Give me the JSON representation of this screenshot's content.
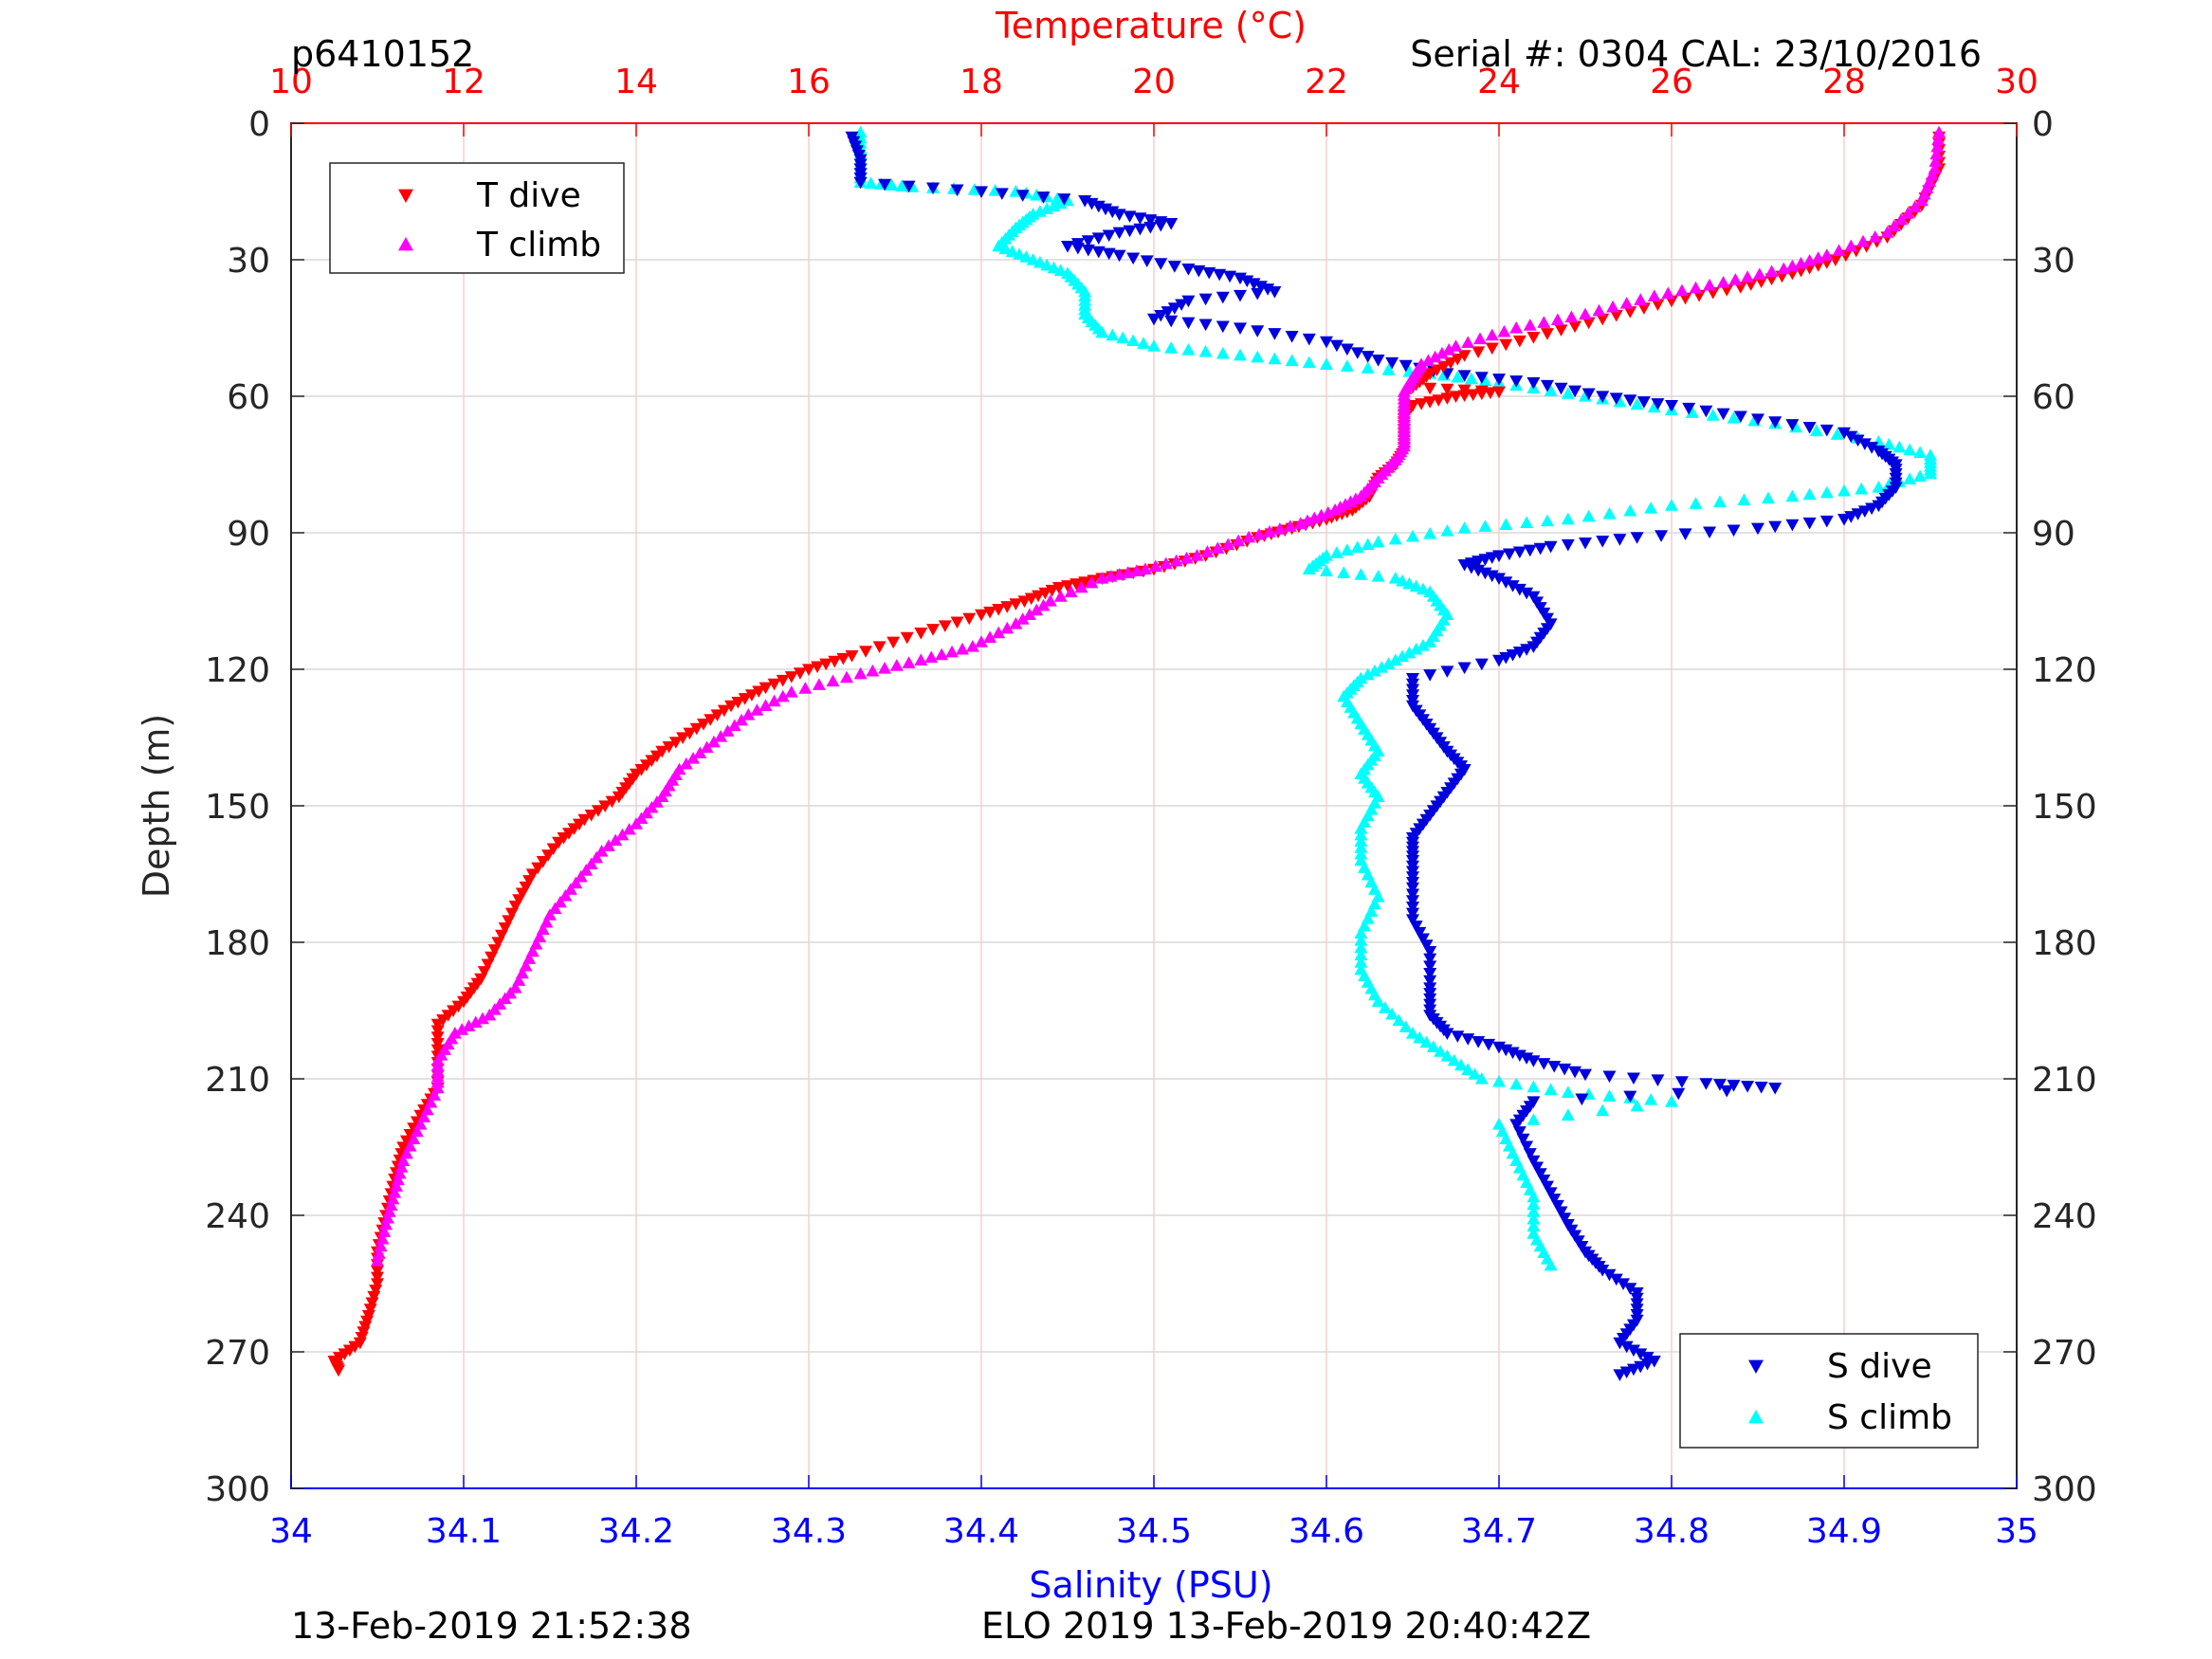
{
  "header": {
    "glider_id": "p6410152",
    "serial_cal": "Serial #: 0304  CAL: 23/10/2016"
  },
  "footer": {
    "left_timestamp": "13-Feb-2019 21:52:38",
    "center_text": "ELO 2019 13-Feb-2019 20:40:42Z"
  },
  "colors": {
    "t_dive": "#ff0000",
    "t_climb": "#ff00ff",
    "s_dive": "#0000dd",
    "s_climb": "#00ffff",
    "temperature_axis": "#ff0000",
    "salinity_axis": "#0000ff",
    "axis": "#262626"
  },
  "chart_data": {
    "type": "scatter",
    "ylabel": "Depth (m)",
    "ylim": [
      0,
      300
    ],
    "y_reversed": true,
    "y_ticks": [
      "0",
      "30",
      "60",
      "90",
      "120",
      "150",
      "180",
      "210",
      "240",
      "270",
      "300"
    ],
    "temperature_axis": {
      "label": "Temperature (°C)",
      "position": "top",
      "lim": [
        10,
        30
      ],
      "ticks": [
        "10",
        "12",
        "14",
        "16",
        "18",
        "20",
        "22",
        "24",
        "26",
        "28",
        "30"
      ]
    },
    "salinity_axis": {
      "label": "Salinity (PSU)",
      "position": "bottom",
      "lim": [
        34,
        35
      ],
      "ticks": [
        "34",
        "34.1",
        "34.2",
        "34.3",
        "34.4",
        "34.5",
        "34.6",
        "34.7",
        "34.8",
        "34.9",
        "35"
      ]
    },
    "grid": true,
    "legends": [
      {
        "placement": "top-left",
        "entries": [
          "T dive",
          "T climb"
        ]
      },
      {
        "placement": "bottom-right",
        "entries": [
          "S dive",
          "S climb"
        ]
      }
    ],
    "series": [
      {
        "name": "T dive",
        "axis": "temperature",
        "marker": "triangle-down",
        "points": [
          [
            29.1,
            3
          ],
          [
            29.1,
            10
          ],
          [
            28.9,
            18
          ],
          [
            28.5,
            25
          ],
          [
            27.9,
            30
          ],
          [
            27.4,
            33
          ],
          [
            26.8,
            36
          ],
          [
            26.0,
            39
          ],
          [
            25.2,
            43
          ],
          [
            24.4,
            47
          ],
          [
            23.6,
            51
          ],
          [
            23.2,
            55
          ],
          [
            23.0,
            58
          ],
          [
            24.0,
            59
          ],
          [
            23.5,
            60
          ],
          [
            23.0,
            62
          ],
          [
            22.9,
            64
          ],
          [
            22.9,
            68
          ],
          [
            22.9,
            72
          ],
          [
            22.8,
            75
          ],
          [
            22.6,
            78
          ],
          [
            22.5,
            82
          ],
          [
            22.3,
            85
          ],
          [
            22.0,
            87
          ],
          [
            21.6,
            89
          ],
          [
            21.2,
            91
          ],
          [
            20.6,
            95
          ],
          [
            20.0,
            98
          ],
          [
            19.4,
            100
          ],
          [
            18.9,
            102
          ],
          [
            18.5,
            105
          ],
          [
            18.0,
            108
          ],
          [
            17.3,
            112
          ],
          [
            16.5,
            117
          ],
          [
            16.0,
            120
          ],
          [
            15.5,
            124
          ],
          [
            15.1,
            128
          ],
          [
            14.7,
            133
          ],
          [
            14.3,
            138
          ],
          [
            14.0,
            143
          ],
          [
            13.8,
            148
          ],
          [
            13.4,
            153
          ],
          [
            13.1,
            158
          ],
          [
            12.8,
            165
          ],
          [
            12.6,
            172
          ],
          [
            12.4,
            180
          ],
          [
            12.2,
            188
          ],
          [
            12.0,
            193
          ],
          [
            11.7,
            198
          ],
          [
            11.7,
            205
          ],
          [
            11.7,
            212
          ],
          [
            11.5,
            218
          ],
          [
            11.3,
            225
          ],
          [
            11.2,
            232
          ],
          [
            11.1,
            240
          ],
          [
            11.0,
            248
          ],
          [
            11.0,
            255
          ],
          [
            10.9,
            262
          ],
          [
            10.8,
            268
          ],
          [
            10.5,
            272
          ],
          [
            10.55,
            274
          ]
        ]
      },
      {
        "name": "T climb",
        "axis": "temperature",
        "marker": "triangle-up",
        "points": [
          [
            29.1,
            2
          ],
          [
            29.05,
            10
          ],
          [
            28.9,
            17
          ],
          [
            28.5,
            24
          ],
          [
            27.8,
            29
          ],
          [
            27.3,
            32
          ],
          [
            26.6,
            35
          ],
          [
            25.8,
            38
          ],
          [
            25.0,
            42
          ],
          [
            24.2,
            45
          ],
          [
            23.5,
            49
          ],
          [
            23.1,
            53
          ],
          [
            23.0,
            56
          ],
          [
            22.9,
            59
          ],
          [
            22.9,
            63
          ],
          [
            22.9,
            67
          ],
          [
            22.9,
            71
          ],
          [
            22.8,
            74
          ],
          [
            22.6,
            78
          ],
          [
            22.4,
            82
          ],
          [
            22.1,
            85
          ],
          [
            21.7,
            88
          ],
          [
            21.1,
            91
          ],
          [
            20.5,
            95
          ],
          [
            19.9,
            98
          ],
          [
            19.4,
            100
          ],
          [
            18.8,
            105
          ],
          [
            18.4,
            110
          ],
          [
            17.9,
            115
          ],
          [
            17.3,
            118
          ],
          [
            16.6,
            121
          ],
          [
            15.8,
            125
          ],
          [
            15.3,
            130
          ],
          [
            14.9,
            136
          ],
          [
            14.5,
            142
          ],
          [
            14.3,
            148
          ],
          [
            14.0,
            154
          ],
          [
            13.6,
            160
          ],
          [
            13.3,
            167
          ],
          [
            13.0,
            174
          ],
          [
            12.8,
            182
          ],
          [
            12.6,
            190
          ],
          [
            12.3,
            196
          ],
          [
            11.9,
            200
          ],
          [
            11.7,
            206
          ],
          [
            11.7,
            212
          ],
          [
            11.5,
            220
          ],
          [
            11.3,
            228
          ],
          [
            11.2,
            235
          ],
          [
            11.1,
            242
          ],
          [
            11.0,
            250
          ]
        ]
      },
      {
        "name": "S dive",
        "axis": "salinity",
        "marker": "triangle-down",
        "points": [
          [
            34.325,
            3
          ],
          [
            34.33,
            8
          ],
          [
            34.33,
            13
          ],
          [
            34.4,
            15
          ],
          [
            34.46,
            17
          ],
          [
            34.48,
            20
          ],
          [
            34.51,
            22
          ],
          [
            34.48,
            24
          ],
          [
            34.45,
            27
          ],
          [
            34.48,
            29
          ],
          [
            34.52,
            32
          ],
          [
            34.55,
            34
          ],
          [
            34.57,
            37
          ],
          [
            34.52,
            39
          ],
          [
            34.5,
            43
          ],
          [
            34.55,
            45
          ],
          [
            34.6,
            48
          ],
          [
            34.63,
            52
          ],
          [
            34.67,
            55
          ],
          [
            34.72,
            57
          ],
          [
            34.76,
            60
          ],
          [
            34.8,
            62
          ],
          [
            34.85,
            65
          ],
          [
            34.9,
            68
          ],
          [
            34.92,
            72
          ],
          [
            34.93,
            75
          ],
          [
            34.93,
            80
          ],
          [
            34.92,
            84
          ],
          [
            34.9,
            87
          ],
          [
            34.85,
            89
          ],
          [
            34.78,
            91
          ],
          [
            34.73,
            93
          ],
          [
            34.7,
            95
          ],
          [
            34.68,
            97
          ],
          [
            34.7,
            100
          ],
          [
            34.72,
            104
          ],
          [
            34.73,
            110
          ],
          [
            34.72,
            115
          ],
          [
            34.7,
            118
          ],
          [
            34.65,
            122
          ],
          [
            34.65,
            128
          ],
          [
            34.66,
            133
          ],
          [
            34.67,
            138
          ],
          [
            34.68,
            142
          ],
          [
            34.67,
            147
          ],
          [
            34.66,
            152
          ],
          [
            34.65,
            157
          ],
          [
            34.65,
            162
          ],
          [
            34.65,
            168
          ],
          [
            34.65,
            175
          ],
          [
            34.66,
            182
          ],
          [
            34.66,
            190
          ],
          [
            34.66,
            196
          ],
          [
            34.67,
            200
          ],
          [
            34.7,
            203
          ],
          [
            34.72,
            206
          ],
          [
            34.75,
            209
          ],
          [
            34.82,
            211
          ],
          [
            34.86,
            212
          ],
          [
            34.72,
            215
          ],
          [
            34.71,
            220
          ],
          [
            34.72,
            228
          ],
          [
            34.73,
            235
          ],
          [
            34.74,
            242
          ],
          [
            34.75,
            248
          ],
          [
            34.76,
            252
          ],
          [
            34.78,
            257
          ],
          [
            34.78,
            263
          ],
          [
            34.77,
            268
          ],
          [
            34.79,
            272
          ],
          [
            34.77,
            275
          ]
        ]
      },
      {
        "name": "S climb",
        "axis": "salinity",
        "marker": "triangle-up",
        "points": [
          [
            34.33,
            2
          ],
          [
            34.33,
            8
          ],
          [
            34.33,
            13
          ],
          [
            34.36,
            14
          ],
          [
            34.42,
            15
          ],
          [
            34.45,
            17
          ],
          [
            34.43,
            20
          ],
          [
            34.42,
            23
          ],
          [
            34.41,
            27
          ],
          [
            34.43,
            30
          ],
          [
            34.45,
            33
          ],
          [
            34.46,
            37
          ],
          [
            34.46,
            42
          ],
          [
            34.47,
            46
          ],
          [
            34.5,
            49
          ],
          [
            34.55,
            51
          ],
          [
            34.6,
            53
          ],
          [
            34.66,
            55
          ],
          [
            34.7,
            57
          ],
          [
            34.75,
            60
          ],
          [
            34.8,
            63
          ],
          [
            34.86,
            66
          ],
          [
            34.92,
            70
          ],
          [
            34.95,
            73
          ],
          [
            34.95,
            77
          ],
          [
            34.92,
            80
          ],
          [
            34.87,
            82
          ],
          [
            34.8,
            84
          ],
          [
            34.74,
            87
          ],
          [
            34.68,
            89
          ],
          [
            34.63,
            92
          ],
          [
            34.6,
            95
          ],
          [
            34.59,
            98
          ],
          [
            34.64,
            100
          ],
          [
            34.66,
            103
          ],
          [
            34.67,
            108
          ],
          [
            34.66,
            114
          ],
          [
            34.64,
            118
          ],
          [
            34.62,
            122
          ],
          [
            34.61,
            126
          ],
          [
            34.62,
            132
          ],
          [
            34.63,
            138
          ],
          [
            34.62,
            143
          ],
          [
            34.63,
            148
          ],
          [
            34.62,
            155
          ],
          [
            34.62,
            162
          ],
          [
            34.63,
            170
          ],
          [
            34.62,
            178
          ],
          [
            34.62,
            186
          ],
          [
            34.63,
            193
          ],
          [
            34.65,
            200
          ],
          [
            34.67,
            205
          ],
          [
            34.69,
            210
          ],
          [
            34.74,
            213
          ],
          [
            34.8,
            215
          ],
          [
            34.7,
            220
          ],
          [
            34.71,
            228
          ],
          [
            34.72,
            236
          ],
          [
            34.72,
            244
          ],
          [
            34.73,
            251
          ]
        ]
      }
    ]
  }
}
